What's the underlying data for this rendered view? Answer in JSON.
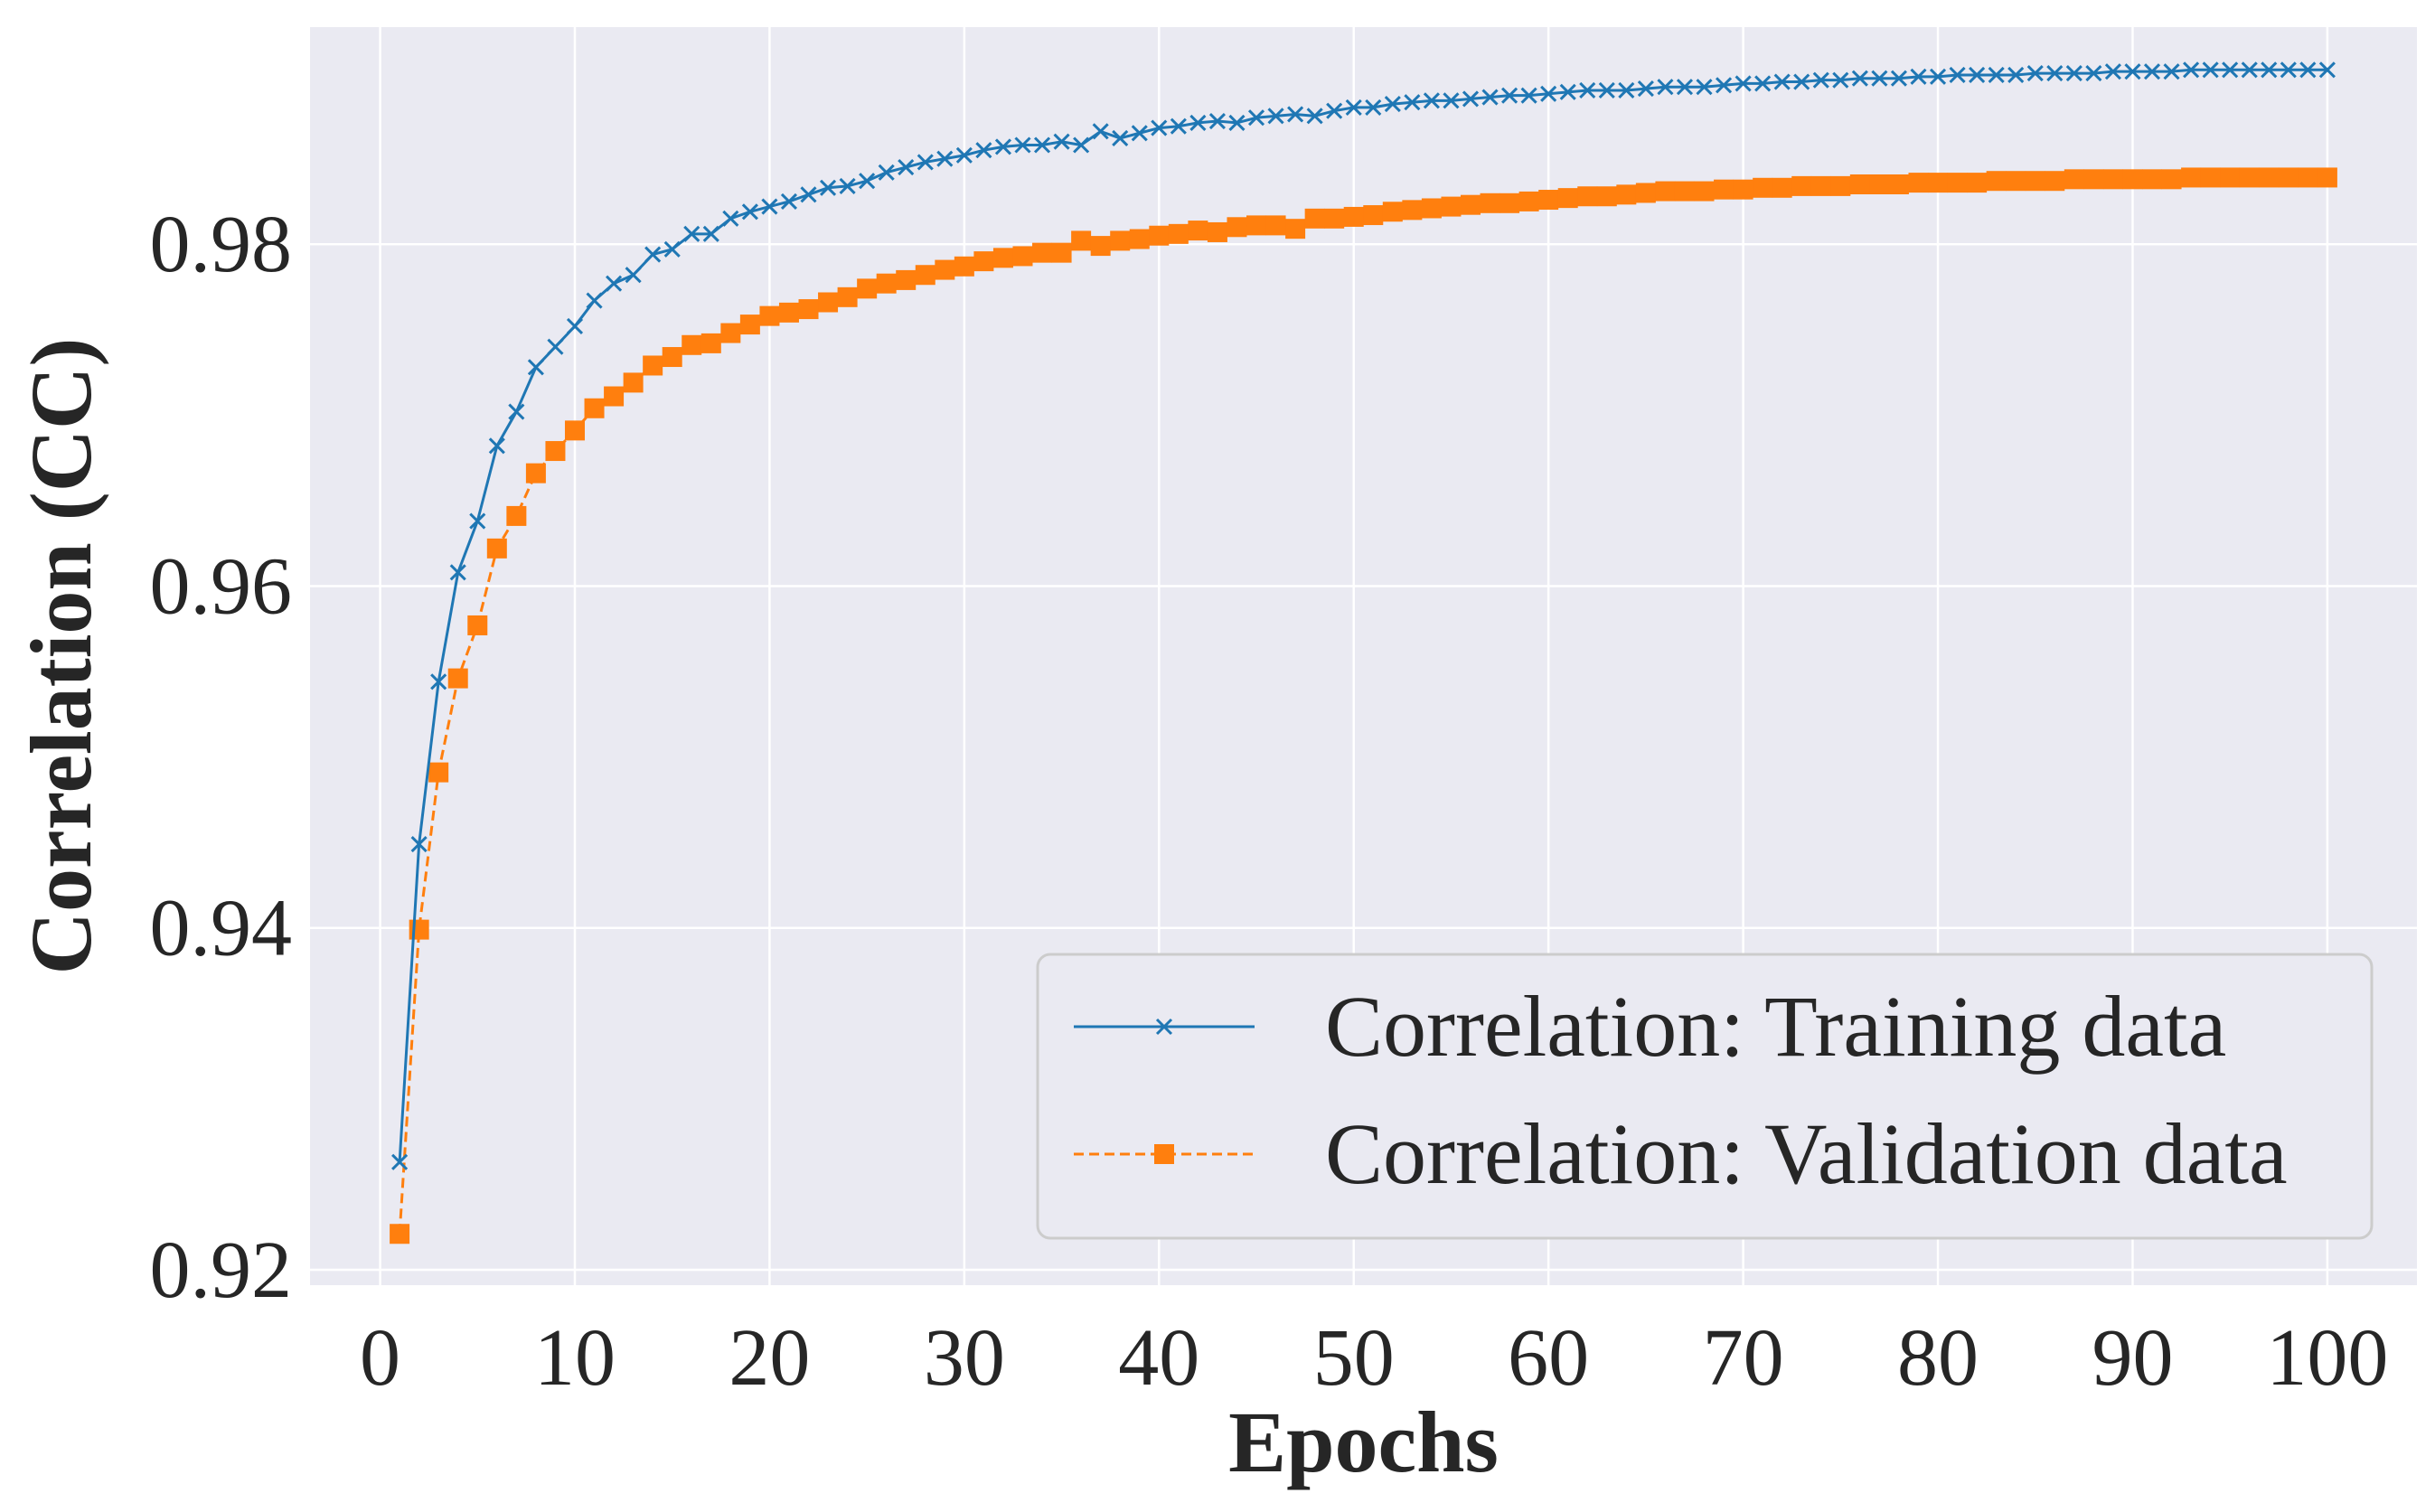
{
  "chart_data": {
    "type": "line",
    "xlabel": "Epochs",
    "ylabel": "Correlation (CC)",
    "xlim": [
      -3.6,
      104.6
    ],
    "ylim": [
      0.9191,
      0.9927
    ],
    "xticks": [
      0,
      10,
      20,
      30,
      40,
      50,
      60,
      70,
      80,
      90,
      100
    ],
    "xtick_labels": [
      "0",
      "10",
      "20",
      "30",
      "40",
      "50",
      "60",
      "70",
      "80",
      "90",
      "100"
    ],
    "yticks": [
      0.92,
      0.94,
      0.96,
      0.98
    ],
    "ytick_labels": [
      "0.92",
      "0.94",
      "0.96",
      "0.98"
    ],
    "grid": true,
    "legend_position": "lower-right",
    "colors": {
      "plot_background": "#eaeaf2",
      "grid": "#ffffff",
      "training": "#1f77b4",
      "validation": "#ff7f0e"
    },
    "x": [
      1,
      2,
      3,
      4,
      5,
      6,
      7,
      8,
      9,
      10,
      11,
      12,
      13,
      14,
      15,
      16,
      17,
      18,
      19,
      20,
      21,
      22,
      23,
      24,
      25,
      26,
      27,
      28,
      29,
      30,
      31,
      32,
      33,
      34,
      35,
      36,
      37,
      38,
      39,
      40,
      41,
      42,
      43,
      44,
      45,
      46,
      47,
      48,
      49,
      50,
      51,
      52,
      53,
      54,
      55,
      56,
      57,
      58,
      59,
      60,
      61,
      62,
      63,
      64,
      65,
      66,
      67,
      68,
      69,
      70,
      71,
      72,
      73,
      74,
      75,
      76,
      77,
      78,
      79,
      80,
      81,
      82,
      83,
      84,
      85,
      86,
      87,
      88,
      89,
      90,
      91,
      92,
      93,
      94,
      95,
      96,
      97,
      98,
      99,
      100
    ],
    "series": [
      {
        "name": "Correlation: Training data",
        "marker": "x",
        "line_style": "solid",
        "values": [
          0.9263,
          0.9449,
          0.9544,
          0.9608,
          0.9638,
          0.9682,
          0.9702,
          0.9728,
          0.974,
          0.9752,
          0.9767,
          0.9777,
          0.9782,
          0.9794,
          0.9797,
          0.9806,
          0.9806,
          0.9815,
          0.9819,
          0.9822,
          0.9825,
          0.9829,
          0.9833,
          0.9834,
          0.9837,
          0.9842,
          0.9845,
          0.9848,
          0.985,
          0.9852,
          0.9855,
          0.9857,
          0.9858,
          0.9858,
          0.986,
          0.9858,
          0.9866,
          0.9862,
          0.9865,
          0.9868,
          0.9869,
          0.9871,
          0.9872,
          0.9871,
          0.9874,
          0.9875,
          0.9876,
          0.9875,
          0.9878,
          0.988,
          0.988,
          0.9882,
          0.9883,
          0.9884,
          0.9884,
          0.9885,
          0.9886,
          0.9887,
          0.9887,
          0.9888,
          0.9889,
          0.989,
          0.989,
          0.989,
          0.9891,
          0.9892,
          0.9892,
          0.9892,
          0.9893,
          0.9894,
          0.9894,
          0.9895,
          0.9895,
          0.9896,
          0.9896,
          0.9897,
          0.9897,
          0.9897,
          0.9898,
          0.9898,
          0.9899,
          0.9899,
          0.9899,
          0.9899,
          0.99,
          0.99,
          0.99,
          0.99,
          0.9901,
          0.9901,
          0.9901,
          0.9901,
          0.9902,
          0.9902,
          0.9902,
          0.9902,
          0.9902,
          0.9902,
          0.9902,
          0.9902
        ]
      },
      {
        "name": "Correlation: Validation data",
        "marker": "s",
        "line_style": "dashed",
        "values": [
          0.9221,
          0.9399,
          0.9491,
          0.9546,
          0.9577,
          0.9622,
          0.9641,
          0.9666,
          0.9679,
          0.9691,
          0.9704,
          0.9711,
          0.9719,
          0.9729,
          0.9734,
          0.9741,
          0.9742,
          0.9748,
          0.9753,
          0.9758,
          0.976,
          0.9762,
          0.9766,
          0.9769,
          0.9774,
          0.9777,
          0.9779,
          0.9782,
          0.9785,
          0.9787,
          0.979,
          0.9792,
          0.9793,
          0.9795,
          0.9795,
          0.9802,
          0.9799,
          0.9802,
          0.9803,
          0.9805,
          0.9806,
          0.9808,
          0.9807,
          0.981,
          0.9811,
          0.9811,
          0.9809,
          0.9815,
          0.9815,
          0.9816,
          0.9817,
          0.9819,
          0.982,
          0.9821,
          0.9822,
          0.9823,
          0.9824,
          0.9824,
          0.9825,
          0.9826,
          0.9827,
          0.9828,
          0.9828,
          0.9829,
          0.983,
          0.9831,
          0.9831,
          0.9831,
          0.9832,
          0.9832,
          0.9833,
          0.9833,
          0.9834,
          0.9834,
          0.9834,
          0.9835,
          0.9835,
          0.9835,
          0.9836,
          0.9836,
          0.9836,
          0.9836,
          0.9837,
          0.9837,
          0.9837,
          0.9837,
          0.9838,
          0.9838,
          0.9838,
          0.9838,
          0.9838,
          0.9838,
          0.9839,
          0.9839,
          0.9839,
          0.9839,
          0.9839,
          0.9839,
          0.9839,
          0.9839
        ]
      }
    ]
  }
}
